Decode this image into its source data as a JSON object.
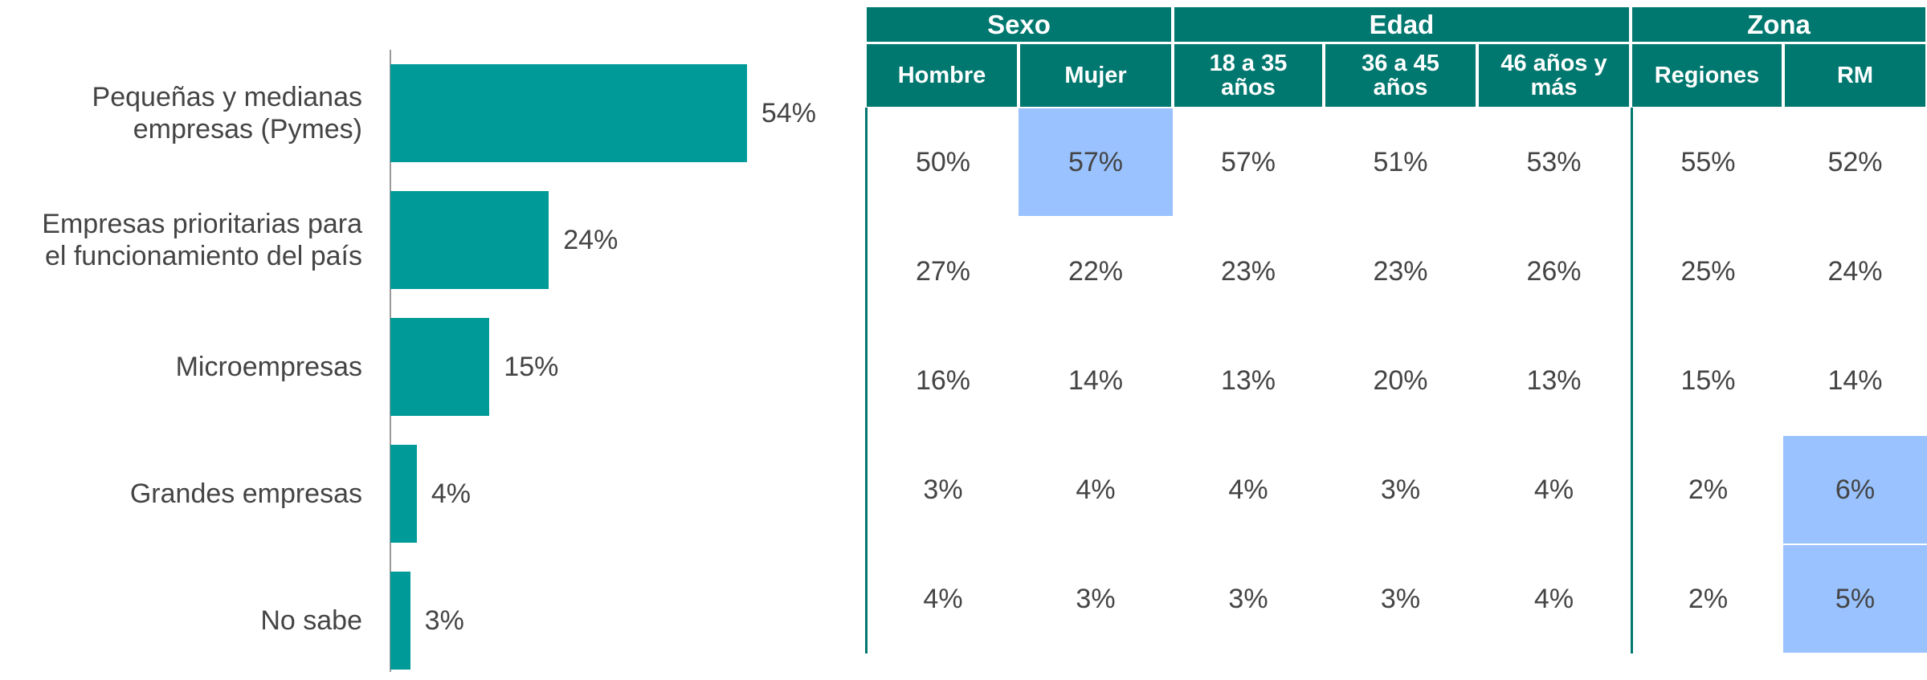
{
  "chart_data": {
    "type": "bar",
    "orientation": "horizontal",
    "categories": [
      "Pequeñas y medianas\nempresas (Pymes)",
      "Empresas prioritarias para\nel funcionamiento del país",
      "Microempresas",
      "Grandes empresas",
      "No sabe"
    ],
    "values": [
      54,
      24,
      15,
      4,
      3
    ],
    "value_labels": [
      "54%",
      "24%",
      "15%",
      "4%",
      "3%"
    ],
    "color": "#009b98",
    "xlim": [
      0,
      100
    ]
  },
  "table": {
    "header_color": "#00786f",
    "highlight_color": "#99c2ff",
    "groups": [
      {
        "label": "Sexo",
        "span": 2
      },
      {
        "label": "Edad",
        "span": 3
      },
      {
        "label": "Zona",
        "span": 2
      }
    ],
    "columns": [
      "Hombre",
      "Mujer",
      "18 a 35 años",
      "36 a 45 años",
      "46 años y más",
      "Regiones",
      "RM"
    ],
    "rows": [
      [
        "50%",
        "57%",
        "57%",
        "51%",
        "53%",
        "55%",
        "52%"
      ],
      [
        "27%",
        "22%",
        "23%",
        "23%",
        "26%",
        "25%",
        "24%"
      ],
      [
        "16%",
        "14%",
        "13%",
        "20%",
        "13%",
        "15%",
        "14%"
      ],
      [
        "3%",
        "4%",
        "4%",
        "3%",
        "4%",
        "2%",
        "6%"
      ],
      [
        "4%",
        "3%",
        "3%",
        "3%",
        "4%",
        "2%",
        "5%"
      ]
    ],
    "highlighted_cells": [
      [
        0,
        1
      ],
      [
        3,
        6
      ],
      [
        4,
        6
      ]
    ]
  }
}
